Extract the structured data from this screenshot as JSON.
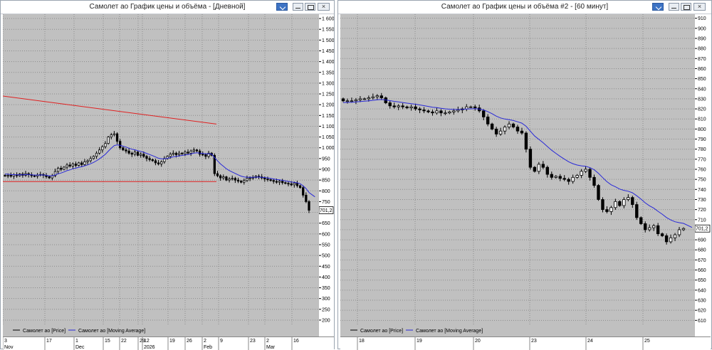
{
  "windows": [
    {
      "title": "Самолет ао График цены и объёма - [Дневной]",
      "buttons": {
        "pin": "pin-icon",
        "min": "minimize-icon",
        "max": "maximize-icon",
        "close": "×"
      },
      "current_price": "701,2",
      "legend": [
        "Самолет ао [Price]",
        "Самолет ао [Moving Average]"
      ],
      "colors": {
        "background": "#c0c0c0",
        "ma": "#2828d8",
        "trend": "#e02020",
        "candle": "#000000"
      },
      "chart_data": {
        "type": "candlestick",
        "series": [
          {
            "name": "Самолет ао [Price]"
          },
          {
            "name": "Самолет ао [Moving Average]"
          }
        ],
        "y_ticks": [
          "1 600",
          "1 550",
          "1 500",
          "1 450",
          "1 400",
          "1 350",
          "1 300",
          "1 250",
          "1 200",
          "1 150",
          "1 100",
          "1 050",
          "1 000",
          "950",
          "900",
          "850",
          "800",
          "750",
          "700",
          "650",
          "600",
          "550",
          "500",
          "450",
          "400",
          "350",
          "300",
          "250",
          "200"
        ],
        "ylim": [
          180,
          1620
        ],
        "x_ticks": [
          {
            "day": "3",
            "month": "Nov"
          },
          {
            "day": "17",
            "month": ""
          },
          {
            "day": "1",
            "month": "Dec"
          },
          {
            "day": "15",
            "month": ""
          },
          {
            "day": "22",
            "month": ""
          },
          {
            "day": "29",
            "month": ""
          },
          {
            "day": "12",
            "month": "2026"
          },
          {
            "day": "19",
            "month": ""
          },
          {
            "day": "26",
            "month": ""
          },
          {
            "day": "2",
            "month": "Feb"
          },
          {
            "day": "9",
            "month": ""
          },
          {
            "day": "23",
            "month": ""
          },
          {
            "day": "2",
            "month": "Mar"
          },
          {
            "day": "16",
            "month": ""
          }
        ],
        "closes": [
          870,
          872,
          868,
          875,
          870,
          878,
          872,
          880,
          875,
          870,
          868,
          874,
          876,
          872,
          866,
          860,
          870,
          890,
          905,
          900,
          910,
          920,
          915,
          925,
          918,
          930,
          922,
          935,
          940,
          950,
          960,
          975,
          990,
          1005,
          1020,
          1050,
          1060,
          1065,
          1030,
          1000,
          990,
          985,
          975,
          970,
          980,
          965,
          970,
          960,
          950,
          945,
          940,
          930,
          925,
          935,
          950,
          960,
          970,
          975,
          968,
          975,
          972,
          980,
          975,
          985,
          990,
          985,
          970,
          968,
          960,
          975,
          965,
          880,
          870,
          860,
          865,
          850,
          855,
          858,
          850,
          845,
          840,
          848,
          858,
          860,
          862,
          868,
          865,
          860,
          855,
          852,
          848,
          844,
          840,
          845,
          838,
          835,
          832,
          828,
          836,
          824,
          815,
          780,
          750,
          710
        ],
        "ma_start": 880,
        "trendlines": [
          {
            "from": 1240,
            "to": 1110
          },
          {
            "level": 843
          }
        ]
      }
    },
    {
      "title": "Самолет ао График цены и объёма #2 - [60 минут]",
      "buttons": {
        "pin": "pin-icon",
        "min": "minimize-icon",
        "max": "maximize-icon",
        "close": "×"
      },
      "current_price": "701,2",
      "legend": [
        "Самолет ао [Price]",
        "Самолет ао [Moving Average]"
      ],
      "colors": {
        "background": "#c0c0c0",
        "ma": "#2828d8",
        "candle": "#000000"
      },
      "chart_data": {
        "type": "candlestick",
        "series": [
          {
            "name": "Самолет ао [Price]"
          },
          {
            "name": "Самолет ао [Moving Average]"
          }
        ],
        "y_ticks": [
          "910",
          "900",
          "890",
          "880",
          "870",
          "860",
          "850",
          "840",
          "830",
          "820",
          "810",
          "800",
          "790",
          "780",
          "770",
          "760",
          "750",
          "740",
          "730",
          "720",
          "710",
          "700",
          "690",
          "680",
          "670",
          "660",
          "650",
          "640",
          "630",
          "620",
          "610"
        ],
        "ylim": [
          606,
          914
        ],
        "x_ticks": [
          {
            "day": "18",
            "month": ""
          },
          {
            "day": "19",
            "month": ""
          },
          {
            "day": "20",
            "month": ""
          },
          {
            "day": "23",
            "month": ""
          },
          {
            "day": "24",
            "month": ""
          },
          {
            "day": "25",
            "month": ""
          }
        ],
        "closes": [
          828,
          828,
          828,
          829,
          830,
          830,
          831,
          832,
          833,
          831,
          826,
          823,
          822,
          823,
          822,
          821,
          822,
          820,
          819,
          818,
          817,
          816,
          818,
          816,
          816,
          817,
          818,
          819,
          820,
          822,
          822,
          821,
          818,
          812,
          805,
          800,
          795,
          798,
          802,
          805,
          802,
          798,
          796,
          780,
          762,
          758,
          765,
          762,
          755,
          752,
          753,
          751,
          750,
          748,
          752,
          754,
          758,
          760,
          752,
          744,
          730,
          720,
          718,
          722,
          728,
          724,
          730,
          732,
          725,
          712,
          706,
          700,
          702,
          704,
          696,
          694,
          688,
          692,
          695,
          700,
          701.2
        ],
        "ma_start": 826
      }
    }
  ]
}
